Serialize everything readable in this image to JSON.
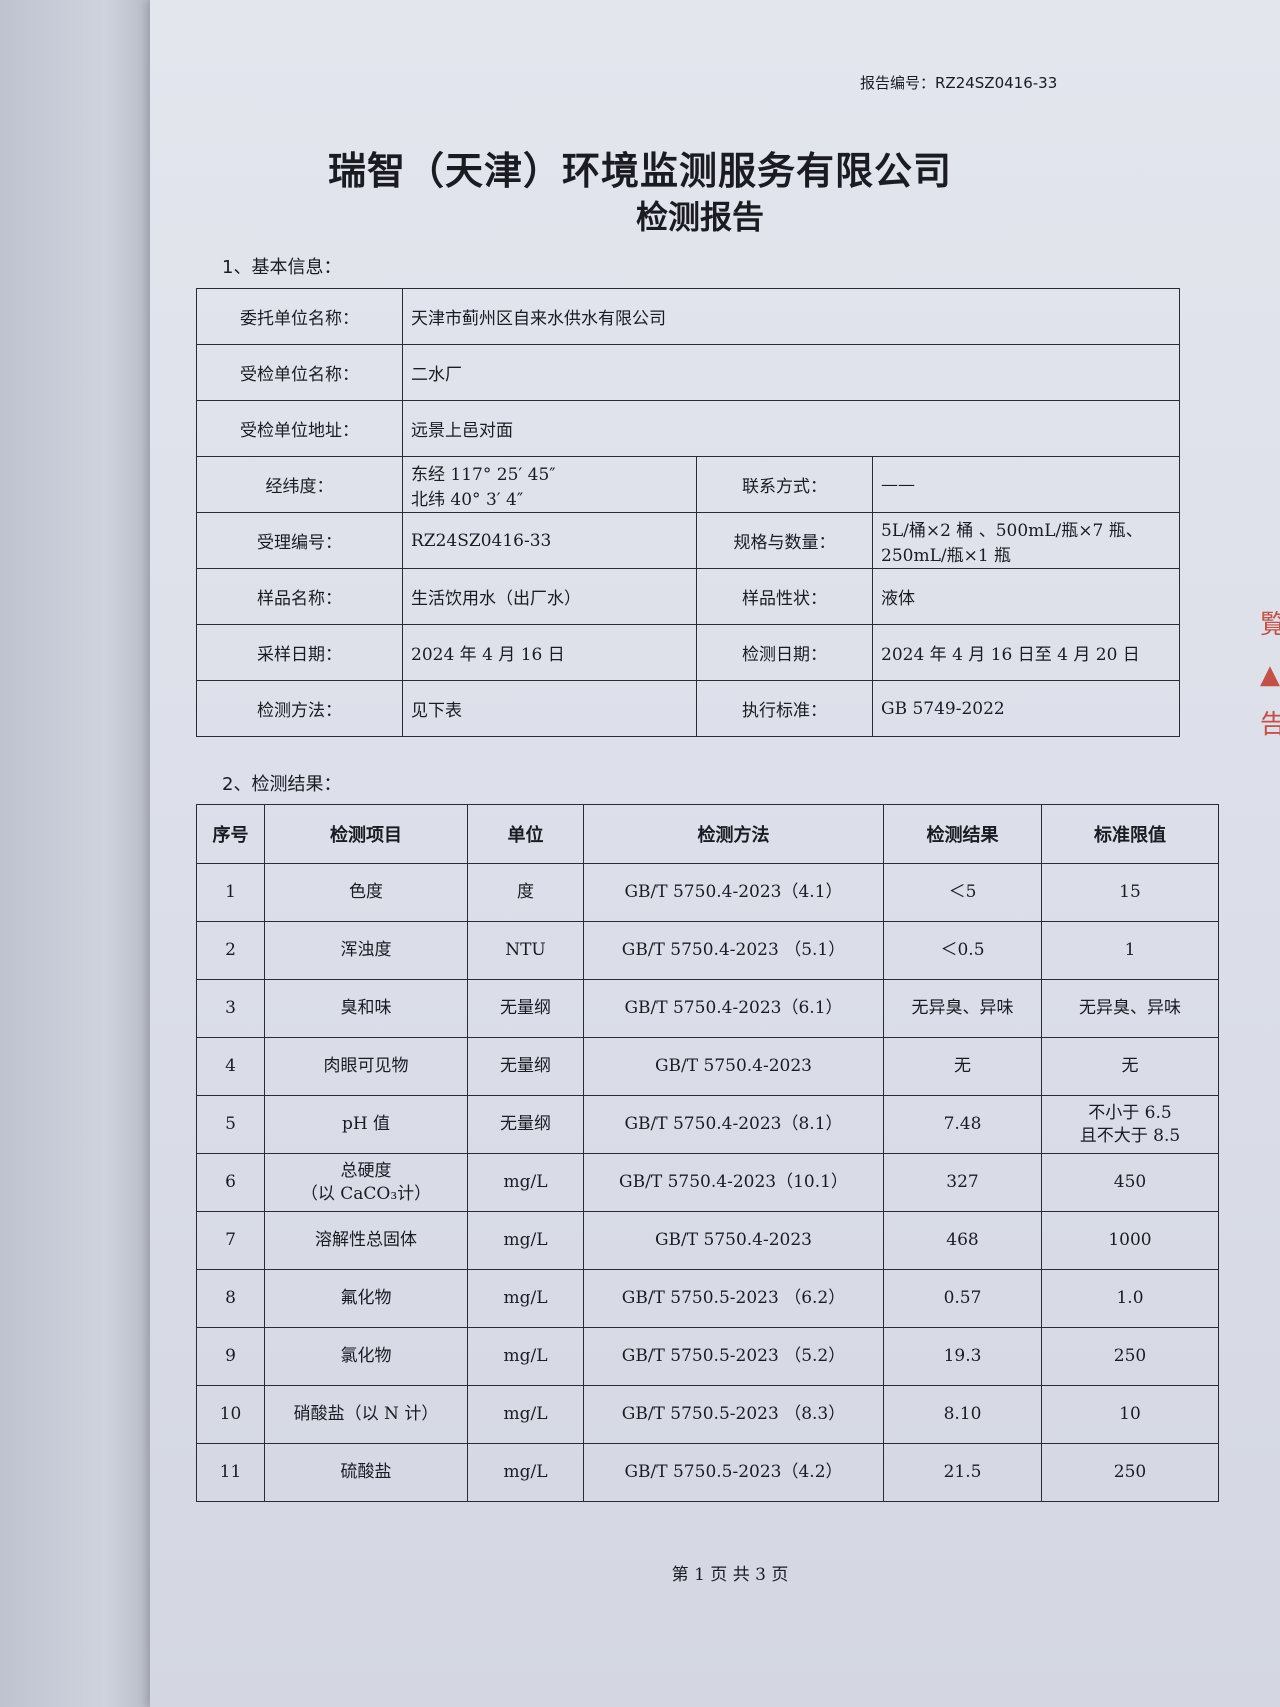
{
  "report_number": "报告编号：RZ24SZ0416-33",
  "company": "瑞智（天津）环境监测服务有限公司",
  "title": "检测报告",
  "section1": "1、基本信息：",
  "basic_info": {
    "client_label": "委托单位名称：",
    "client": "天津市蓟州区自来水供水有限公司",
    "inspected_label": "受检单位名称：",
    "inspected": "二水厂",
    "address_label": "受检单位地址：",
    "address": "远景上邑对面",
    "coords_label": "经纬度：",
    "longitude": "东经 117° 25′ 45″",
    "latitude": "北纬 40° 3′ 4″",
    "contact_label": "联系方式：",
    "contact": "——",
    "accept_no_label": "受理编号：",
    "accept_no": "RZ24SZ0416-33",
    "spec_label": "规格与数量：",
    "spec_line1": "5L/桶×2 桶 、500mL/瓶×7 瓶、",
    "spec_line2": "250mL/瓶×1 瓶",
    "sample_label": "样品名称：",
    "sample": "生活饮用水（出厂水）",
    "shape_label": "样品性状：",
    "shape": "液体",
    "sampling_date_label": "采样日期：",
    "sampling_date": "2024 年 4 月 16 日",
    "test_date_label": "检测日期：",
    "test_date": "2024 年 4 月 16 日至 4 月 20 日",
    "method_label": "检测方法：",
    "method": "见下表",
    "standard_label": "执行标准：",
    "standard": "GB 5749-2022"
  },
  "section2": "2、检测结果：",
  "results": {
    "headers": [
      "序号",
      "检测项目",
      "单位",
      "检测方法",
      "检测结果",
      "标准限值"
    ],
    "rows": [
      [
        "1",
        "色度",
        "度",
        "GB/T 5750.4-2023（4.1）",
        "＜5",
        "15"
      ],
      [
        "2",
        "浑浊度",
        "NTU",
        "GB/T 5750.4-2023 （5.1）",
        "＜0.5",
        "1"
      ],
      [
        "3",
        "臭和味",
        "无量纲",
        "GB/T 5750.4-2023（6.1）",
        "无异臭、异味",
        "无异臭、异味"
      ],
      [
        "4",
        "肉眼可见物",
        "无量纲",
        "GB/T 5750.4-2023",
        "无",
        "无"
      ],
      [
        "5",
        "pH 值",
        "无量纲",
        "GB/T 5750.4-2023（8.1）",
        "7.48",
        "不小于 6.5\n且不大于 8.5"
      ],
      [
        "6",
        "总硬度\n（以 CaCO₃计）",
        "mg/L",
        "GB/T 5750.4-2023（10.1）",
        "327",
        "450"
      ],
      [
        "7",
        "溶解性总固体",
        "mg/L",
        "GB/T 5750.4-2023",
        "468",
        "1000"
      ],
      [
        "8",
        "氟化物",
        "mg/L",
        "GB/T 5750.5-2023 （6.2）",
        "0.57",
        "1.0"
      ],
      [
        "9",
        "氯化物",
        "mg/L",
        "GB/T 5750.5-2023 （5.2）",
        "19.3",
        "250"
      ],
      [
        "10",
        "硝酸盐（以 N 计）",
        "mg/L",
        "GB/T 5750.5-2023 （8.3）",
        "8.10",
        "10"
      ],
      [
        "11",
        "硫酸盐",
        "mg/L",
        "GB/T 5750.5-2023（4.2）",
        "21.5",
        "250"
      ]
    ]
  },
  "footer": "第 1 页 共 3 页",
  "stamp_text": "覧告"
}
